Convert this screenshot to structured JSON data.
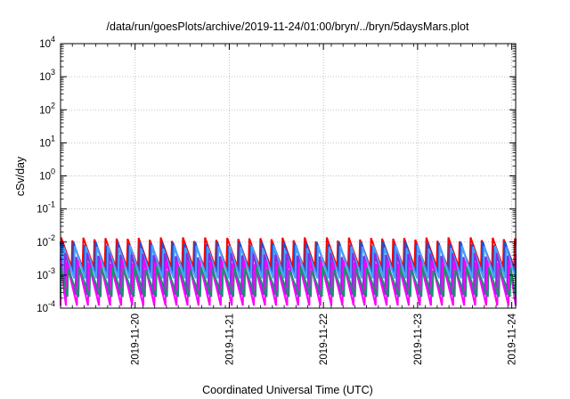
{
  "chart_data": {
    "type": "line",
    "title": "/data/run/goesPlots/archive/2019-11-24/01:00/bryn/../bryn/5daysMars.plot",
    "xlabel": "Coordinated Universal Time (UTC)",
    "ylabel": "cSv/day",
    "yscale": "log",
    "ylim": [
      0.0001,
      10000
    ],
    "xlim": [
      "2019-11-19T05:00",
      "2019-11-24T01:00"
    ],
    "x_ticks": [
      "2019-11-20",
      "2019-11-21",
      "2019-11-22",
      "2019-11-23",
      "2019-11-24"
    ],
    "y_ticks": [
      {
        "base": "10",
        "exp": "-4"
      },
      {
        "base": "10",
        "exp": "-3"
      },
      {
        "base": "10",
        "exp": "-2"
      },
      {
        "base": "10",
        "exp": "-1"
      },
      {
        "base": "10",
        "exp": "0"
      },
      {
        "base": "10",
        "exp": "1"
      },
      {
        "base": "10",
        "exp": "2"
      },
      {
        "base": "10",
        "exp": "3"
      },
      {
        "base": "10",
        "exp": "4"
      }
    ],
    "grid": true,
    "legend": "none",
    "cycle_hours": 2.82,
    "series": [
      {
        "color": "#ff0000",
        "peak": 0.012,
        "trough": 0.0017,
        "phase": 0.0
      },
      {
        "color": "#1f4fd0",
        "peak": 0.009,
        "trough": 0.0011,
        "phase": 0.1
      },
      {
        "color": "#4aa0ff",
        "peak": 0.007,
        "trough": 0.0008,
        "phase": 0.22
      },
      {
        "color": "#8a2be2",
        "peak": 0.004,
        "trough": 0.00025,
        "phase": 0.35
      },
      {
        "color": "#ff00ff",
        "peak": 0.0025,
        "trough": 0.00012,
        "phase": 0.48
      },
      {
        "color": "#1a8f6f",
        "peak": 0.0016,
        "trough": 0.00022,
        "phase": 0.62
      }
    ]
  }
}
